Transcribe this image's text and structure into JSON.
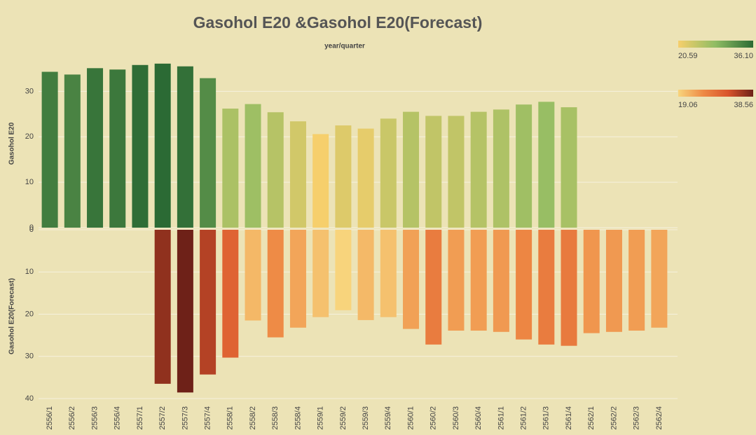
{
  "chart_data": {
    "type": "bar",
    "title": "Gasohol E20 &Gasohol E20(Forecast)",
    "subtitle": "year/quarter",
    "grid": true,
    "categories": [
      "2556/1",
      "2556/2",
      "2556/3",
      "2556/4",
      "2557/1",
      "2557/2",
      "2557/3",
      "2557/4",
      "2558/1",
      "2558/2",
      "2558/3",
      "2558/4",
      "2559/1",
      "2559/2",
      "2559/3",
      "2559/4",
      "2560/1",
      "2560/2",
      "2560/3",
      "2560/4",
      "2561/1",
      "2561/2",
      "2561/3",
      "2561/4",
      "2562/1",
      "2562/2",
      "2562/3",
      "2562/4"
    ],
    "series": [
      {
        "name": "Gasohol E20",
        "values": [
          34.3,
          33.7,
          35.1,
          34.8,
          35.8,
          36.1,
          35.5,
          32.9,
          26.2,
          27.2,
          25.4,
          23.4,
          20.59,
          22.5,
          21.8,
          24.0,
          25.5,
          24.6,
          24.6,
          25.5,
          26.0,
          27.1,
          27.7,
          26.5,
          null,
          null,
          null,
          null
        ],
        "ylim": [
          0,
          37
        ],
        "yticks": [
          0,
          10,
          20,
          30
        ],
        "reversed": false,
        "colors": [
          "#f6cf6c",
          "#8fbc63",
          "#2b6a34"
        ],
        "color_range": [
          20.59,
          {
            "value": 36.1,
            "label": "36.10"
          }
        ]
      },
      {
        "name": "Gasohol E20(Forecast)",
        "values": [
          null,
          null,
          null,
          null,
          null,
          36.5,
          38.56,
          34.3,
          30.3,
          21.5,
          25.5,
          23.2,
          20.7,
          19.06,
          21.4,
          20.7,
          23.5,
          27.2,
          23.9,
          23.9,
          24.2,
          26.0,
          27.2,
          27.5,
          24.5,
          24.2,
          23.9,
          23.2
        ],
        "ylim": [
          0,
          41
        ],
        "yticks": [
          0,
          10,
          20,
          30,
          40
        ],
        "reversed": true,
        "colors": [
          "#f8d47c",
          "#ee8a45",
          "#d9542c",
          "#6e2118"
        ],
        "color_range": [
          19.06,
          38.56
        ]
      }
    ]
  }
}
